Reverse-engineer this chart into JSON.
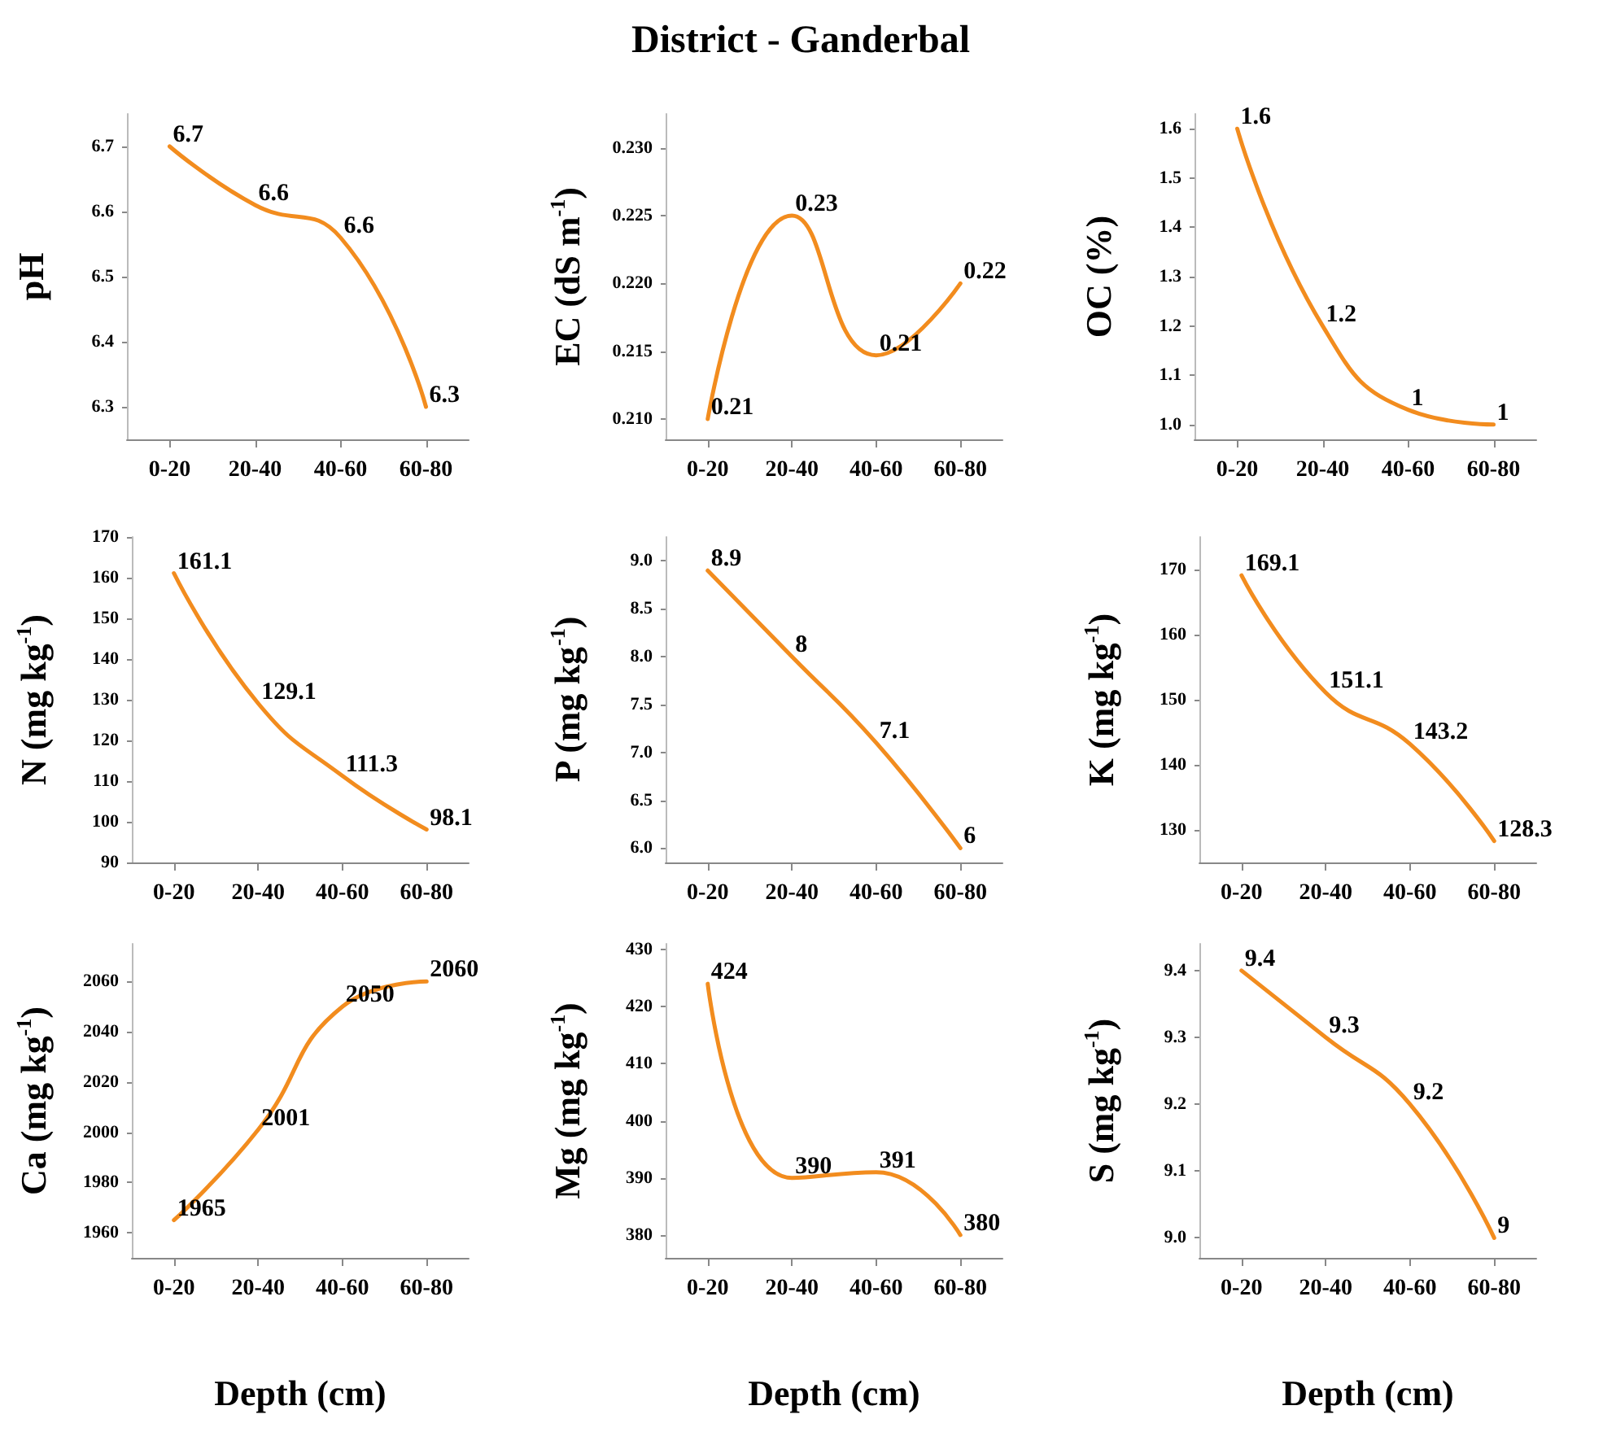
{
  "chart_data": [
    {
      "type": "line",
      "ylabel": "pH",
      "categories": [
        "0-20",
        "20-40",
        "40-60",
        "60-80"
      ],
      "series": [
        {
          "color": "#f28c1e",
          "values": [
            6.7,
            6.61,
            6.56,
            6.3
          ],
          "value_labels": [
            "6.7",
            "6.6",
            "6.6",
            "6.3"
          ]
        }
      ],
      "ylim": [
        6.25,
        6.75
      ],
      "yticks": [
        6.3,
        6.4,
        6.5,
        6.6,
        6.7
      ],
      "grid": false,
      "marker": "none",
      "line_style": "solid"
    },
    {
      "type": "line",
      "title": "District - Ganderbal",
      "ylabel": "EC (dS m$^{-1}$)",
      "categories": [
        "0-20",
        "20-40",
        "40-60",
        "60-80"
      ],
      "series": [
        {
          "color": "#f28c1e",
          "values": [
            0.21,
            0.225,
            0.2147,
            0.22
          ],
          "value_labels": [
            "0.21",
            "0.23",
            "0.21",
            "0.22"
          ]
        }
      ],
      "ylim": [
        0.2085,
        0.2325
      ],
      "yticks": [
        {
          "value": 0.21,
          "label": "0.210"
        },
        {
          "value": 0.215,
          "label": "0.215"
        },
        {
          "value": 0.22,
          "label": "0.220"
        },
        {
          "value": 0.225,
          "label": "0.225"
        },
        {
          "value": 0.23,
          "label": "0.230"
        }
      ],
      "grid": false,
      "marker": "none",
      "line_style": "solid"
    },
    {
      "type": "line",
      "ylabel": "OC (%)",
      "categories": [
        "0-20",
        "20-40",
        "40-60",
        "60-80"
      ],
      "series": [
        {
          "color": "#f28c1e",
          "values": [
            1.6,
            1.2,
            1.03,
            1.0
          ],
          "value_labels": [
            "1.6",
            "1.2",
            "1",
            "1"
          ]
        }
      ],
      "ylim": [
        0.97,
        1.63
      ],
      "yticks": [
        {
          "value": 1.0,
          "label": "1.0"
        },
        1.1,
        1.2,
        1.3,
        1.4,
        1.5,
        1.6
      ],
      "grid": false,
      "marker": "none",
      "line_style": "solid"
    },
    {
      "type": "line",
      "ylabel": "N (mg kg$^{-1}$)",
      "categories": [
        "0-20",
        "20-40",
        "40-60",
        "60-80"
      ],
      "series": [
        {
          "color": "#f28c1e",
          "values": [
            161.1,
            129.1,
            111.3,
            98.1
          ]
        }
      ],
      "data_labels": true,
      "ylim": [
        90,
        170
      ],
      "yticks": [
        90,
        100,
        110,
        120,
        130,
        140,
        150,
        160,
        170
      ],
      "grid": false,
      "marker": "none",
      "line_style": "solid"
    },
    {
      "type": "line",
      "ylabel": "P (mg kg$^{-1}$)",
      "categories": [
        "0-20",
        "20-40",
        "40-60",
        "60-80"
      ],
      "series": [
        {
          "color": "#f28c1e",
          "values": [
            8.9,
            8,
            7.1,
            6
          ]
        }
      ],
      "data_labels": true,
      "ylim": [
        5.85,
        9.25
      ],
      "yticks": [
        {
          "value": 6,
          "label": "6.0"
        },
        6.5,
        {
          "value": 7,
          "label": "7.0"
        },
        7.5,
        {
          "value": 8,
          "label": "8.0"
        },
        8.5,
        {
          "value": 9,
          "label": "9.0"
        }
      ],
      "grid": false,
      "marker": "none",
      "line_style": "solid"
    },
    {
      "type": "line",
      "ylabel": "K (mg kg$^{-1}$)",
      "categories": [
        "0-20",
        "20-40",
        "40-60",
        "60-80"
      ],
      "series": [
        {
          "color": "#f28c1e",
          "values": [
            169.1,
            151.1,
            143.2,
            128.3
          ]
        }
      ],
      "data_labels": true,
      "ylim": [
        125,
        175
      ],
      "yticks": [
        130,
        140,
        150,
        160,
        170
      ],
      "grid": false,
      "marker": "none",
      "line_style": "solid"
    },
    {
      "type": "line",
      "ylabel": "Ca (mg kg$^{-1}$)",
      "xlabel": "Depth (cm)",
      "categories": [
        "0-20",
        "20-40",
        "40-60",
        "60-80"
      ],
      "series": [
        {
          "color": "#f28c1e",
          "values": [
            1965,
            2001,
            2050,
            2060
          ]
        }
      ],
      "data_labels": true,
      "ylim": [
        1950,
        2075
      ],
      "yticks": [
        1960,
        1980,
        2000,
        2020,
        2040,
        2060
      ],
      "grid": false,
      "marker": "none",
      "line_style": "solid"
    },
    {
      "type": "line",
      "ylabel": "Mg (mg kg$^{-1}$)",
      "xlabel": "Depth (cm)",
      "categories": [
        "0-20",
        "20-40",
        "40-60",
        "60-80"
      ],
      "series": [
        {
          "color": "#f28c1e",
          "values": [
            424,
            390,
            391,
            380
          ]
        }
      ],
      "data_labels": true,
      "ylim": [
        376,
        431
      ],
      "yticks": [
        380,
        390,
        400,
        410,
        420,
        430
      ],
      "grid": false,
      "marker": "none",
      "line_style": "solid"
    },
    {
      "type": "line",
      "ylabel": "S (mg kg$^{-1}$)",
      "xlabel": "Depth (cm)",
      "categories": [
        "0-20",
        "20-40",
        "40-60",
        "60-80"
      ],
      "series": [
        {
          "color": "#f28c1e",
          "values": [
            9.4,
            9.3,
            9.2,
            9.0
          ],
          "value_labels": [
            "9.4",
            "9.3",
            "9.2",
            "9"
          ]
        }
      ],
      "ylim": [
        8.97,
        9.44
      ],
      "yticks": [
        {
          "value": 9.0,
          "label": "9.0"
        },
        9.1,
        9.2,
        9.3,
        9.4
      ],
      "grid": false,
      "marker": "none",
      "line_style": "solid"
    }
  ]
}
